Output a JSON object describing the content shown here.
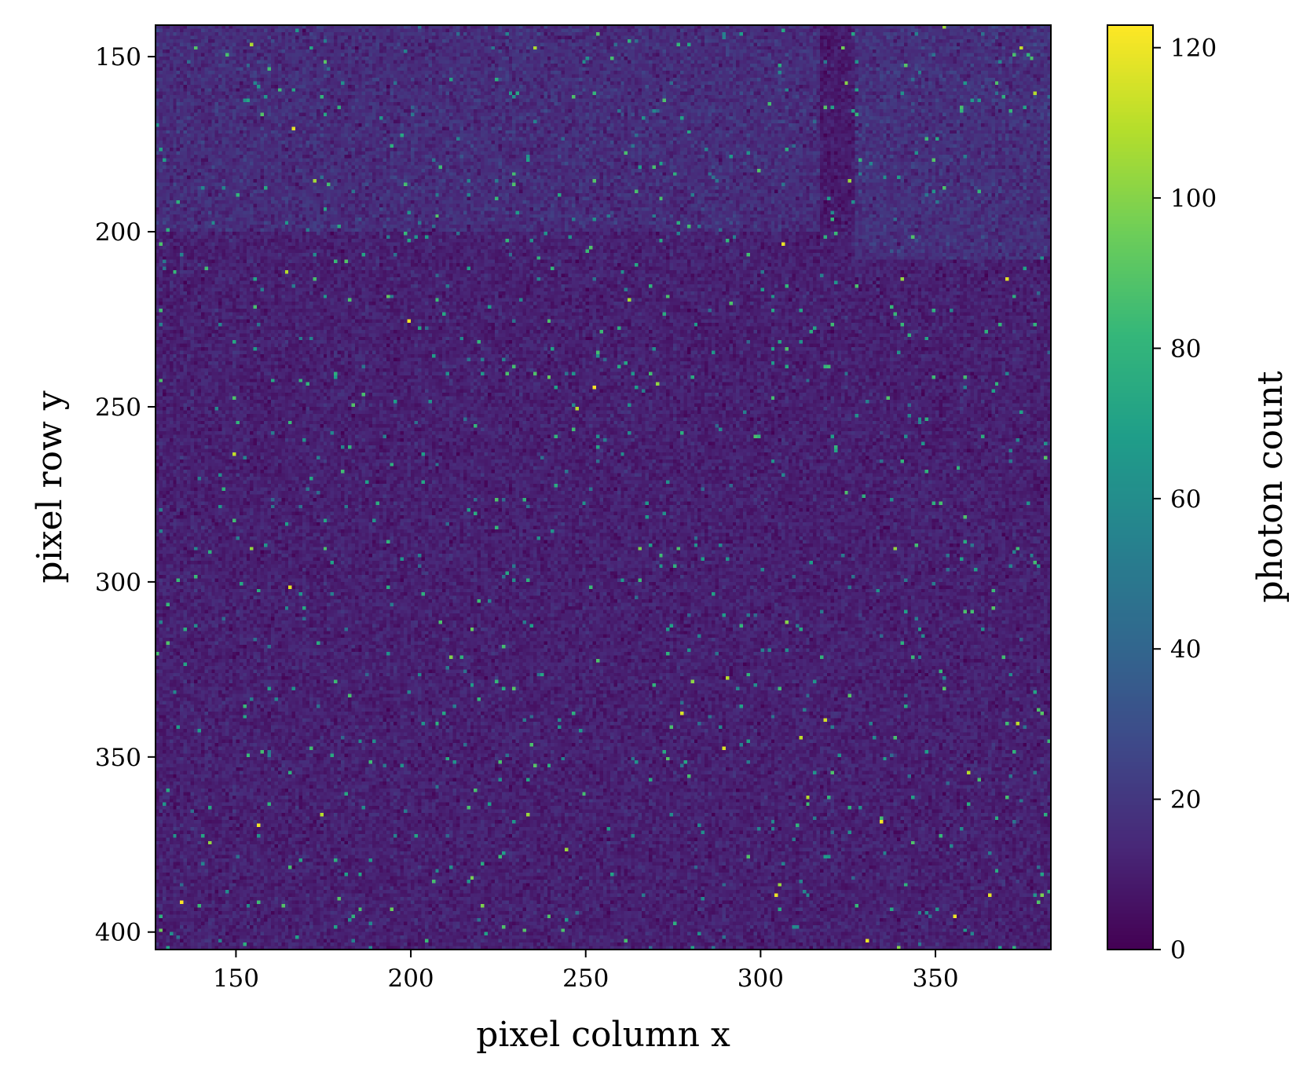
{
  "chart_data": {
    "type": "heatmap",
    "title": "",
    "xlabel": "pixel column x",
    "ylabel": "pixel row y",
    "xlim": [
      127,
      383
    ],
    "ylim": [
      405,
      141
    ],
    "x_ticks": [
      150,
      200,
      250,
      300,
      350
    ],
    "y_ticks": [
      150,
      200,
      250,
      300,
      350,
      400
    ],
    "colorbar": {
      "label": "photon count",
      "range": [
        0,
        123
      ],
      "ticks": [
        0,
        20,
        40,
        60,
        80,
        100,
        120
      ],
      "colormap": "viridis",
      "colormap_stops": [
        "#440154",
        "#482878",
        "#3e4989",
        "#31688e",
        "#26828e",
        "#1f9e89",
        "#35b779",
        "#6ece58",
        "#b5de2b",
        "#fde725"
      ]
    },
    "field": {
      "background_mean": 11,
      "brighter_band": {
        "x_range": [
          127,
          327
        ],
        "y_range": [
          141,
          200
        ],
        "mean": 16
      },
      "brighter_corner": {
        "x_range": [
          327,
          383
        ],
        "y_range": [
          141,
          208
        ],
        "mean": 17
      },
      "dark_notch": {
        "x_range": [
          317,
          327
        ],
        "y_range": [
          141,
          200
        ],
        "mean": 9
      },
      "bright_pixel_max": 123,
      "noise": "poisson-like, isolated bright pixels 40-90 scattered throughout"
    }
  }
}
